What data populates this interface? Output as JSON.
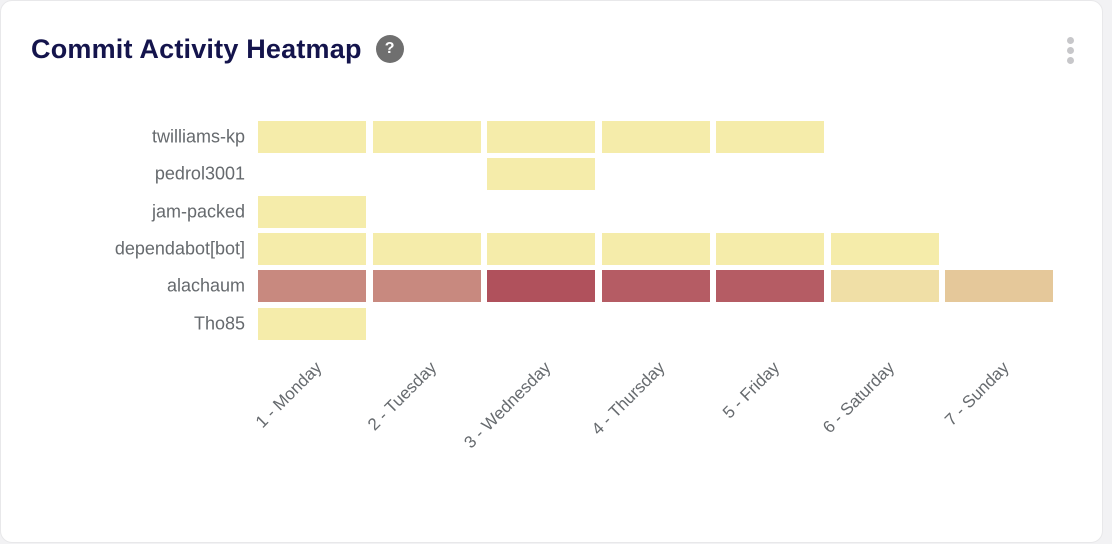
{
  "card": {
    "title": "Commit Activity Heatmap",
    "help_glyph": "?",
    "title_color": "#14144c",
    "background": "#ffffff",
    "page_background": "#f2f2f4"
  },
  "chart_data": {
    "type": "heatmap",
    "title": "Commit Activity Heatmap",
    "rows": [
      "twilliams-kp",
      "pedrol3001",
      "jam-packed",
      "dependabot[bot]",
      "alachaum",
      "Tho85"
    ],
    "columns": [
      "1 - Monday",
      "2 - Tuesday",
      "3 - Wednesday",
      "4 - Thursday",
      "5 - Friday",
      "6 - Saturday",
      "7 - Sunday"
    ],
    "xtick_angle": -45,
    "grid": false,
    "legend_position": "none",
    "colorscale_low_to_high": [
      "#f5ecaa",
      "#f0dfa6",
      "#e5c89a",
      "#c8897f",
      "#b55c64",
      "#b0515c"
    ],
    "cell_colors": [
      [
        "#f5ecaa",
        "#f5ecaa",
        "#f5ecaa",
        "#f5ecaa",
        "#f5ecaa",
        null,
        null
      ],
      [
        null,
        null,
        "#f5ecaa",
        null,
        null,
        null,
        null
      ],
      [
        "#f5ecaa",
        null,
        null,
        null,
        null,
        null,
        null
      ],
      [
        "#f5ecaa",
        "#f5ecaa",
        "#f5ecaa",
        "#f5ecaa",
        "#f5ecaa",
        "#f5ecaa",
        null
      ],
      [
        "#c8897f",
        "#c8897f",
        "#b0515c",
        "#b55c64",
        "#b55c64",
        "#f0dfa6",
        "#e5c89a"
      ],
      [
        "#f5ecaa",
        null,
        null,
        null,
        null,
        null,
        null
      ]
    ],
    "relative_intensity": [
      [
        1,
        1,
        1,
        1,
        1,
        0,
        0
      ],
      [
        0,
        0,
        1,
        0,
        0,
        0,
        0
      ],
      [
        1,
        0,
        0,
        0,
        0,
        0,
        0
      ],
      [
        1,
        1,
        1,
        1,
        1,
        1,
        0
      ],
      [
        4,
        4,
        6,
        5,
        5,
        2,
        3
      ],
      [
        1,
        0,
        0,
        0,
        0,
        0,
        0
      ]
    ]
  }
}
